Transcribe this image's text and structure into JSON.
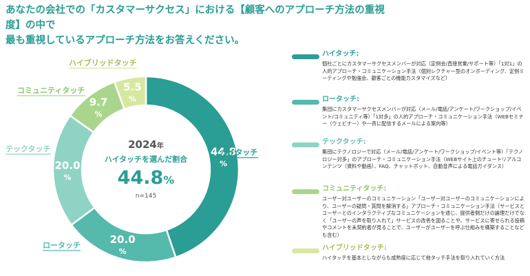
{
  "header": {
    "title_line1": "あなたの会社での「カスタマーサクセス」における【顧客へのアプローチ方法の重視度】の中で",
    "title_line2": "最も重視しているアプローチ方法をお答えください。"
  },
  "chart_data": {
    "type": "pie",
    "donut": true,
    "center": {
      "year": "2024",
      "year_unit": "年",
      "label": "ハイタッチを選んだ割合",
      "value": "44.8",
      "unit": "%",
      "n": "n=145"
    },
    "slices": [
      {
        "name": "ハイタッチ",
        "value": 44.8,
        "display": "44.8",
        "unit": "%",
        "color": "#2a9d94"
      },
      {
        "name": "ロータッチ",
        "value": 20.0,
        "display": "20.0",
        "unit": "%",
        "color": "#55b9ab"
      },
      {
        "name": "テックタッチ",
        "value": 20.0,
        "display": "20.0",
        "unit": "%",
        "color": "#8fd3c4"
      },
      {
        "name": "コミュニティタッチ",
        "value": 9.7,
        "display": "9.7",
        "unit": "%",
        "color": "#a9d68c"
      },
      {
        "name": "ハイブリッドタッチ",
        "value": 5.5,
        "display": "5.5",
        "unit": "%",
        "color": "#d6e8a0"
      }
    ]
  },
  "legend": [
    {
      "name": "ハイタッチ:",
      "color": "#2a9d94",
      "text_color": "#2a9d94",
      "desc": "個社ごとにカスタマーサクセスメンバーが対応（定例会/直接営業/サポート等）「1対1」の人的アプローチ・コミュニケーション手法（個別レクチャー型のオンボーディング、定例ミーティングや勉強会、顧客ごとの機能カスタマイズなど）"
    },
    {
      "name": "ロータッチ:",
      "color": "#55b9ab",
      "text_color": "#3aa89b",
      "desc": "集団にカスタマーサクセスメンバーが対応（メール/電話/アンケート/ワークショップ/イベント/コミュニティ等）「1対多」の人的アプローチ・コミュニケーション手法（WEBセミナー（ウェビナー）や一斉に配信するメールによる案内等）"
    },
    {
      "name": "テックタッチ:",
      "color": "#8fd3c4",
      "text_color": "#5fbfb0",
      "desc": "集団にテクノロジーで対応（メール/電話/アンケート/ワークショップ/イベント等）「テクノロジー対多」のアプローチ・コミュニケーション手法（WEBサイト上のチュートリアルコンテンツ（資料や動画）、FAQ、チャットボット、自動音声による電話ガイダンス）"
    },
    {
      "name": "コミュニティタッチ:",
      "color": "#a9d68c",
      "text_color": "#8cc46c",
      "desc": "ユーザー対ユーザーのコミュニケーション「ユーザー対ユーザーのコミュニケーションにより、ユーザーの疑問・質問を解消する」アプローチ・コミュニケーション手法（サービスとユーザーとのインタラクティブなコミュニケーションを通じ、提供者側だけの論理だけでなく「ユーザーの声を取り入れて」サービスの改善を図ることや、サービスに寄せられる投稿やコメントを未契約者が見ることで、ユーザーがユーザーを呼ぶ仕組みを構築することなども含む）"
    },
    {
      "name": "ハイブリッドタッチ:",
      "color": "#d6e8a0",
      "text_color": "#a6bd55",
      "desc": "ハイタッチを基本としながらも成熟度に応じて他タッチ手法を取り入れていく方法"
    }
  ]
}
